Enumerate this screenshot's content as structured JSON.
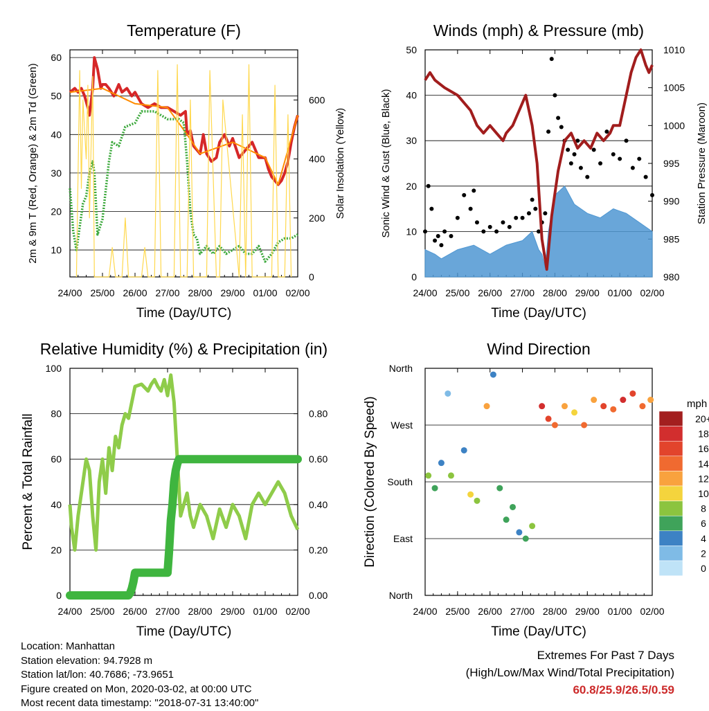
{
  "chart_data": [
    {
      "type": "line",
      "title": "Temperature (F)",
      "xlabel": "Time (Day/UTC)",
      "ylabel": "2m & 9m T (Red, Orange) & 2m Td (Green)",
      "ylabel_right": "Solar Insolation (Yellow)",
      "ylim": [
        3,
        62
      ],
      "ylim_right": [
        0,
        770
      ],
      "xlim": [
        0,
        7
      ],
      "x_ticks": [
        "24/00",
        "25/00",
        "26/00",
        "27/00",
        "28/00",
        "29/00",
        "01/00",
        "02/00"
      ],
      "y_ticks": [
        10,
        20,
        30,
        40,
        50,
        60
      ],
      "y_ticks_right": [
        0,
        200,
        400,
        600
      ],
      "grid": "horizontal",
      "series": [
        {
          "name": "2m T",
          "color": "#d62728",
          "x": [
            0,
            0.15,
            0.25,
            0.35,
            0.45,
            0.55,
            0.6,
            0.7,
            0.75,
            0.85,
            0.95,
            1.0,
            1.1,
            1.2,
            1.35,
            1.5,
            1.6,
            1.75,
            1.9,
            2.0,
            2.2,
            2.4,
            2.6,
            2.8,
            3.0,
            3.2,
            3.4,
            3.55,
            3.6,
            3.7,
            3.8,
            3.9,
            4.0,
            4.1,
            4.2,
            4.35,
            4.5,
            4.6,
            4.75,
            4.9,
            5.0,
            5.2,
            5.4,
            5.6,
            5.8,
            6.0,
            6.1,
            6.2,
            6.3,
            6.4,
            6.5,
            6.6,
            6.7,
            6.8,
            6.9,
            7.0
          ],
          "values": [
            51,
            52,
            51,
            52,
            50,
            47,
            45,
            52,
            60,
            57,
            52,
            53,
            53,
            52,
            50,
            53,
            51,
            52,
            50,
            51,
            48,
            47,
            48,
            47,
            47,
            46,
            45,
            46,
            40,
            41,
            37,
            36,
            35,
            40,
            35,
            33,
            34,
            38,
            40,
            37,
            39,
            34,
            36,
            38,
            34,
            34,
            31,
            29,
            28,
            27,
            28,
            30,
            33,
            38,
            42,
            45
          ]
        },
        {
          "name": "9m T",
          "color": "#ff8c00",
          "x": [
            0,
            1,
            2,
            3,
            3.6,
            4,
            5,
            6,
            6.4,
            7
          ],
          "values": [
            51,
            52,
            48,
            47,
            40,
            35,
            38,
            34,
            27,
            45
          ]
        },
        {
          "name": "2m Td",
          "color": "#3aa83a",
          "x": [
            0,
            0.1,
            0.2,
            0.3,
            0.4,
            0.5,
            0.6,
            0.7,
            0.75,
            0.85,
            1.0,
            1.2,
            1.3,
            1.5,
            1.7,
            2.0,
            2.2,
            2.4,
            2.6,
            2.8,
            3.0,
            3.2,
            3.35,
            3.5,
            3.6,
            3.7,
            3.8,
            3.9,
            4.0,
            4.2,
            4.4,
            4.6,
            4.8,
            5.0,
            5.2,
            5.4,
            5.6,
            5.8,
            6.0,
            6.2,
            6.4,
            6.6,
            6.8,
            7.0
          ],
          "values": [
            26,
            15,
            10,
            16,
            22,
            24,
            30,
            33,
            30,
            14,
            18,
            33,
            38,
            37,
            42,
            43,
            46,
            46,
            46,
            45,
            44,
            44,
            44,
            43,
            33,
            20,
            14,
            13,
            9,
            11,
            9,
            11,
            9,
            10,
            11,
            9,
            9,
            11,
            7,
            9,
            12,
            13,
            13,
            14
          ]
        },
        {
          "name": "Solar Insolation",
          "color": "#ffd84d",
          "axis": "right",
          "x": [
            0.2,
            0.3,
            0.35,
            0.4,
            0.5,
            0.55,
            0.6,
            0.7,
            0.75,
            1.2,
            1.3,
            1.4,
            1.6,
            1.7,
            1.8,
            2.2,
            2.3,
            2.4,
            2.6,
            2.7,
            2.8,
            3.2,
            3.3,
            3.4,
            3.6,
            3.7,
            3.8,
            4.2,
            4.3,
            4.5,
            4.6,
            4.7,
            5.2,
            5.3,
            5.4,
            5.5,
            5.6,
            5.8,
            6.2,
            6.3,
            6.4,
            6.6,
            6.7,
            6.8
          ],
          "values": [
            0,
            700,
            300,
            600,
            400,
            650,
            200,
            680,
            0,
            0,
            100,
            0,
            0,
            200,
            0,
            0,
            100,
            0,
            0,
            700,
            0,
            0,
            720,
            0,
            0,
            600,
            0,
            0,
            700,
            0,
            0,
            600,
            0,
            550,
            0,
            720,
            0,
            0,
            0,
            650,
            0,
            0,
            550,
            0
          ]
        }
      ]
    },
    {
      "type": "scatter",
      "title": "Winds (mph) & Pressure (mb)",
      "xlabel": "Time (Day/UTC)",
      "ylabel": "Sonic Wind & Gust (Blue, Black)",
      "ylabel_right": "Station Pressure (Maroon)",
      "ylim": [
        0,
        50
      ],
      "ylim_right": [
        980,
        1010
      ],
      "xlim": [
        0,
        7
      ],
      "x_ticks": [
        "24/00",
        "25/00",
        "26/00",
        "27/00",
        "28/00",
        "29/00",
        "01/00",
        "02/00"
      ],
      "y_ticks": [
        0,
        10,
        20,
        30,
        40,
        50
      ],
      "y_ticks_right": [
        980,
        985,
        990,
        995,
        1000,
        1005,
        1010
      ],
      "grid": "horizontal",
      "series": [
        {
          "name": "Sonic Wind",
          "color": "#4f97d2",
          "style": "filled-area",
          "x": [
            0,
            0.3,
            0.5,
            1.0,
            1.5,
            2.0,
            2.5,
            3.0,
            3.3,
            3.5,
            3.6,
            3.7,
            3.8,
            4.0,
            4.3,
            4.6,
            5.0,
            5.4,
            5.8,
            6.2,
            6.6,
            7.0
          ],
          "values": [
            6,
            5,
            4,
            6,
            7,
            5,
            7,
            8,
            10,
            6,
            5,
            2,
            10,
            18,
            20,
            16,
            14,
            13,
            15,
            14,
            12,
            10
          ]
        },
        {
          "name": "Gust",
          "color": "#000000",
          "style": "dots",
          "x": [
            0,
            0.1,
            0.2,
            0.3,
            0.4,
            0.5,
            0.6,
            0.8,
            1.0,
            1.2,
            1.4,
            1.5,
            1.6,
            1.8,
            2.0,
            2.2,
            2.4,
            2.6,
            2.8,
            3.0,
            3.2,
            3.3,
            3.4,
            3.5,
            3.6,
            3.7,
            3.8,
            3.9,
            4.0,
            4.1,
            4.2,
            4.3,
            4.4,
            4.5,
            4.6,
            4.7,
            4.8,
            5.0,
            5.2,
            5.4,
            5.6,
            5.8,
            6.0,
            6.2,
            6.4,
            6.6,
            6.8,
            7.0
          ],
          "values": [
            10,
            20,
            15,
            8,
            9,
            7,
            10,
            9,
            13,
            18,
            15,
            19,
            12,
            10,
            11,
            10,
            12,
            11,
            13,
            13,
            14,
            17,
            15,
            10,
            12,
            14,
            32,
            48,
            40,
            35,
            33,
            30,
            28,
            25,
            27,
            30,
            24,
            22,
            28,
            25,
            32,
            27,
            26,
            30,
            24,
            26,
            22,
            18
          ]
        },
        {
          "name": "Station Pressure",
          "color": "#a11d1d",
          "axis": "right",
          "x": [
            0,
            0.15,
            0.3,
            0.6,
            1.0,
            1.4,
            1.6,
            1.8,
            2.0,
            2.2,
            2.4,
            2.5,
            2.7,
            2.9,
            3.1,
            3.3,
            3.45,
            3.6,
            3.75,
            3.9,
            4.1,
            4.3,
            4.5,
            4.7,
            4.9,
            5.1,
            5.3,
            5.5,
            5.7,
            5.8,
            6.0,
            6.2,
            6.35,
            6.5,
            6.65,
            6.8,
            6.9,
            7.0
          ],
          "values": [
            1006,
            1007,
            1006,
            1005,
            1004,
            1002,
            1000,
            999,
            1000,
            999,
            998,
            999,
            1000,
            1002,
            1004,
            1000,
            995,
            985,
            981,
            988,
            994,
            998,
            999,
            997,
            998,
            997,
            999,
            998,
            999,
            1000,
            1000,
            1004,
            1007,
            1009,
            1010,
            1008,
            1007,
            1008
          ]
        }
      ]
    },
    {
      "type": "line",
      "title": "Relative Humidity (%) & Precipitation (in)",
      "xlabel": "Time (Day/UTC)",
      "ylabel": "Percent & Total Rainfall",
      "ylim": [
        0,
        100
      ],
      "ylim_right": [
        0,
        1.0
      ],
      "xlim": [
        0,
        7
      ],
      "x_ticks": [
        "24/00",
        "25/00",
        "26/00",
        "27/00",
        "28/00",
        "29/00",
        "01/00",
        "02/00"
      ],
      "y_ticks": [
        0,
        20,
        40,
        60,
        80,
        100
      ],
      "y_ticks_right": [
        "0.00",
        "0.20",
        "0.40",
        "0.60",
        "0.80"
      ],
      "grid": "horizontal",
      "series": [
        {
          "name": "Relative Humidity",
          "color": "#8fcc4a",
          "x": [
            0,
            0.05,
            0.15,
            0.25,
            0.35,
            0.5,
            0.6,
            0.7,
            0.8,
            0.9,
            1.0,
            1.1,
            1.2,
            1.3,
            1.4,
            1.5,
            1.6,
            1.7,
            1.8,
            2.0,
            2.2,
            2.4,
            2.5,
            2.6,
            2.7,
            2.8,
            2.9,
            3.0,
            3.1,
            3.2,
            3.3,
            3.4,
            3.5,
            3.6,
            3.7,
            3.8,
            4.0,
            4.2,
            4.4,
            4.6,
            4.8,
            5.0,
            5.2,
            5.4,
            5.6,
            5.8,
            6.0,
            6.2,
            6.4,
            6.6,
            6.8,
            7.0
          ],
          "values": [
            40,
            30,
            20,
            35,
            45,
            60,
            55,
            35,
            20,
            50,
            60,
            45,
            65,
            55,
            70,
            65,
            75,
            80,
            78,
            92,
            93,
            90,
            93,
            95,
            92,
            90,
            95,
            88,
            97,
            85,
            60,
            35,
            40,
            45,
            35,
            30,
            40,
            35,
            25,
            38,
            30,
            40,
            35,
            25,
            40,
            45,
            40,
            45,
            50,
            45,
            35,
            29
          ]
        },
        {
          "name": "Precipitation",
          "color": "#3fb53f",
          "axis": "right",
          "x": [
            0,
            1.8,
            1.85,
            1.9,
            1.95,
            2.0,
            3.0,
            3.05,
            3.1,
            3.15,
            3.2,
            3.25,
            3.3,
            3.35,
            7.0
          ],
          "values": [
            0,
            0,
            0.01,
            0.03,
            0.06,
            0.1,
            0.1,
            0.2,
            0.33,
            0.4,
            0.5,
            0.55,
            0.58,
            0.6,
            0.6
          ]
        }
      ]
    },
    {
      "type": "scatter",
      "title": "Wind Direction",
      "xlabel": "Time (Day/UTC)",
      "ylabel": "Direction (Colored By Speed)",
      "xlim": [
        0,
        7
      ],
      "x_ticks": [
        "24/00",
        "25/00",
        "26/00",
        "27/00",
        "28/00",
        "29/00",
        "01/00",
        "02/00"
      ],
      "y_ticks": [
        "North",
        "East",
        "South",
        "West",
        "North"
      ],
      "ylim": [
        0,
        360
      ],
      "grid": "horizontal",
      "colorbar_title": "mph",
      "colorbar_labels": [
        "20+",
        "18",
        "16",
        "14",
        "12",
        "10",
        "8",
        "6",
        "4",
        "2",
        "0"
      ],
      "colorbar_colors": [
        "#a31f1f",
        "#d22e2e",
        "#e2442c",
        "#f06a30",
        "#f9a23e",
        "#f4d43d",
        "#8cc43f",
        "#3fa35a",
        "#3d82c4",
        "#7fbbe6",
        "#bfe3f7"
      ],
      "x": [
        0.1,
        0.3,
        0.5,
        0.7,
        0.8,
        1.2,
        1.4,
        1.6,
        1.9,
        2.1,
        2.3,
        2.5,
        2.7,
        2.9,
        3.1,
        3.3,
        3.6,
        3.8,
        4.0,
        4.3,
        4.6,
        4.9,
        5.2,
        5.5,
        5.8,
        6.1,
        6.4,
        6.7,
        6.95
      ],
      "values": [
        190,
        170,
        210,
        320,
        190,
        230,
        160,
        150,
        300,
        350,
        170,
        120,
        140,
        100,
        90,
        110,
        300,
        280,
        270,
        300,
        290,
        270,
        310,
        300,
        295,
        310,
        320,
        300,
        310
      ],
      "speeds": [
        8,
        6,
        3,
        2,
        8,
        3,
        9,
        7,
        12,
        4,
        6,
        5,
        6,
        3,
        5,
        8,
        18,
        16,
        14,
        12,
        10,
        14,
        12,
        16,
        14,
        18,
        16,
        14,
        12
      ]
    }
  ],
  "footer": {
    "location": "Location: Manhattan",
    "elevation": "Station elevation: 94.7928 m",
    "latlon": "Station lat/lon: 40.7686; -73.9651",
    "created": "Figure created on Mon, 2020-03-02, at 00:00 UTC",
    "recent": "Most recent data timestamp: \"2018-07-31 13:40:00\""
  },
  "extremes": {
    "heading": "Extremes For Past 7 Days",
    "subheading": "(High/Low/Max Wind/Total Precipitation)",
    "values": "60.8/25.9/26.5/0.59"
  }
}
